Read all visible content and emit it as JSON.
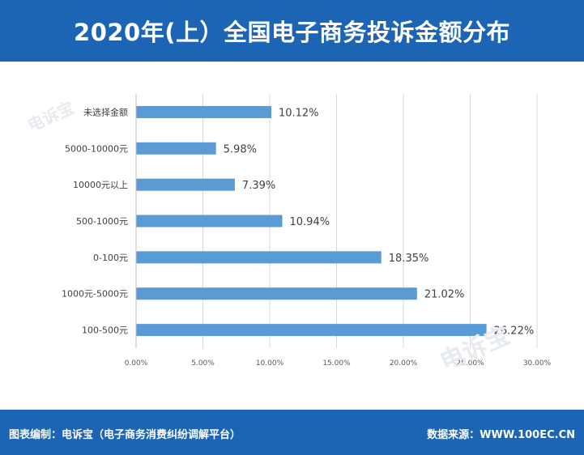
{
  "header": {
    "title": "2020年(上）全国电子商务投诉金额分布"
  },
  "watermark": {
    "text": "电诉宝"
  },
  "footer": {
    "left": "图表编制：电诉宝（电子商务消费纠纷调解平台）",
    "right": "数据来源：WWW.100EC.CN"
  },
  "colors": {
    "header_bg": "#1c64b4",
    "bar": "#5b9bd5",
    "grid": "#d9d9d9"
  },
  "chart_data": {
    "type": "bar",
    "orientation": "horizontal",
    "title": "",
    "xlabel": "",
    "ylabel": "",
    "categories": [
      "未选择金额",
      "5000-10000元",
      "10000元以上",
      "500-1000元",
      "0-100元",
      "1000元-5000元",
      "100-500元"
    ],
    "values": [
      10.12,
      5.98,
      7.39,
      10.94,
      18.35,
      21.02,
      26.22
    ],
    "value_labels": [
      "10.12%",
      "5.98%",
      "7.39%",
      "10.94%",
      "18.35%",
      "21.02%",
      "26.22%"
    ],
    "xlim": [
      0,
      30
    ],
    "xticks": [
      0,
      5,
      10,
      15,
      20,
      25,
      30
    ],
    "xtick_labels": [
      "0.00%",
      "5.00%",
      "10.00%",
      "15.00%",
      "20.00%",
      "25.00%",
      "30.00%"
    ],
    "grid": "vertical"
  }
}
